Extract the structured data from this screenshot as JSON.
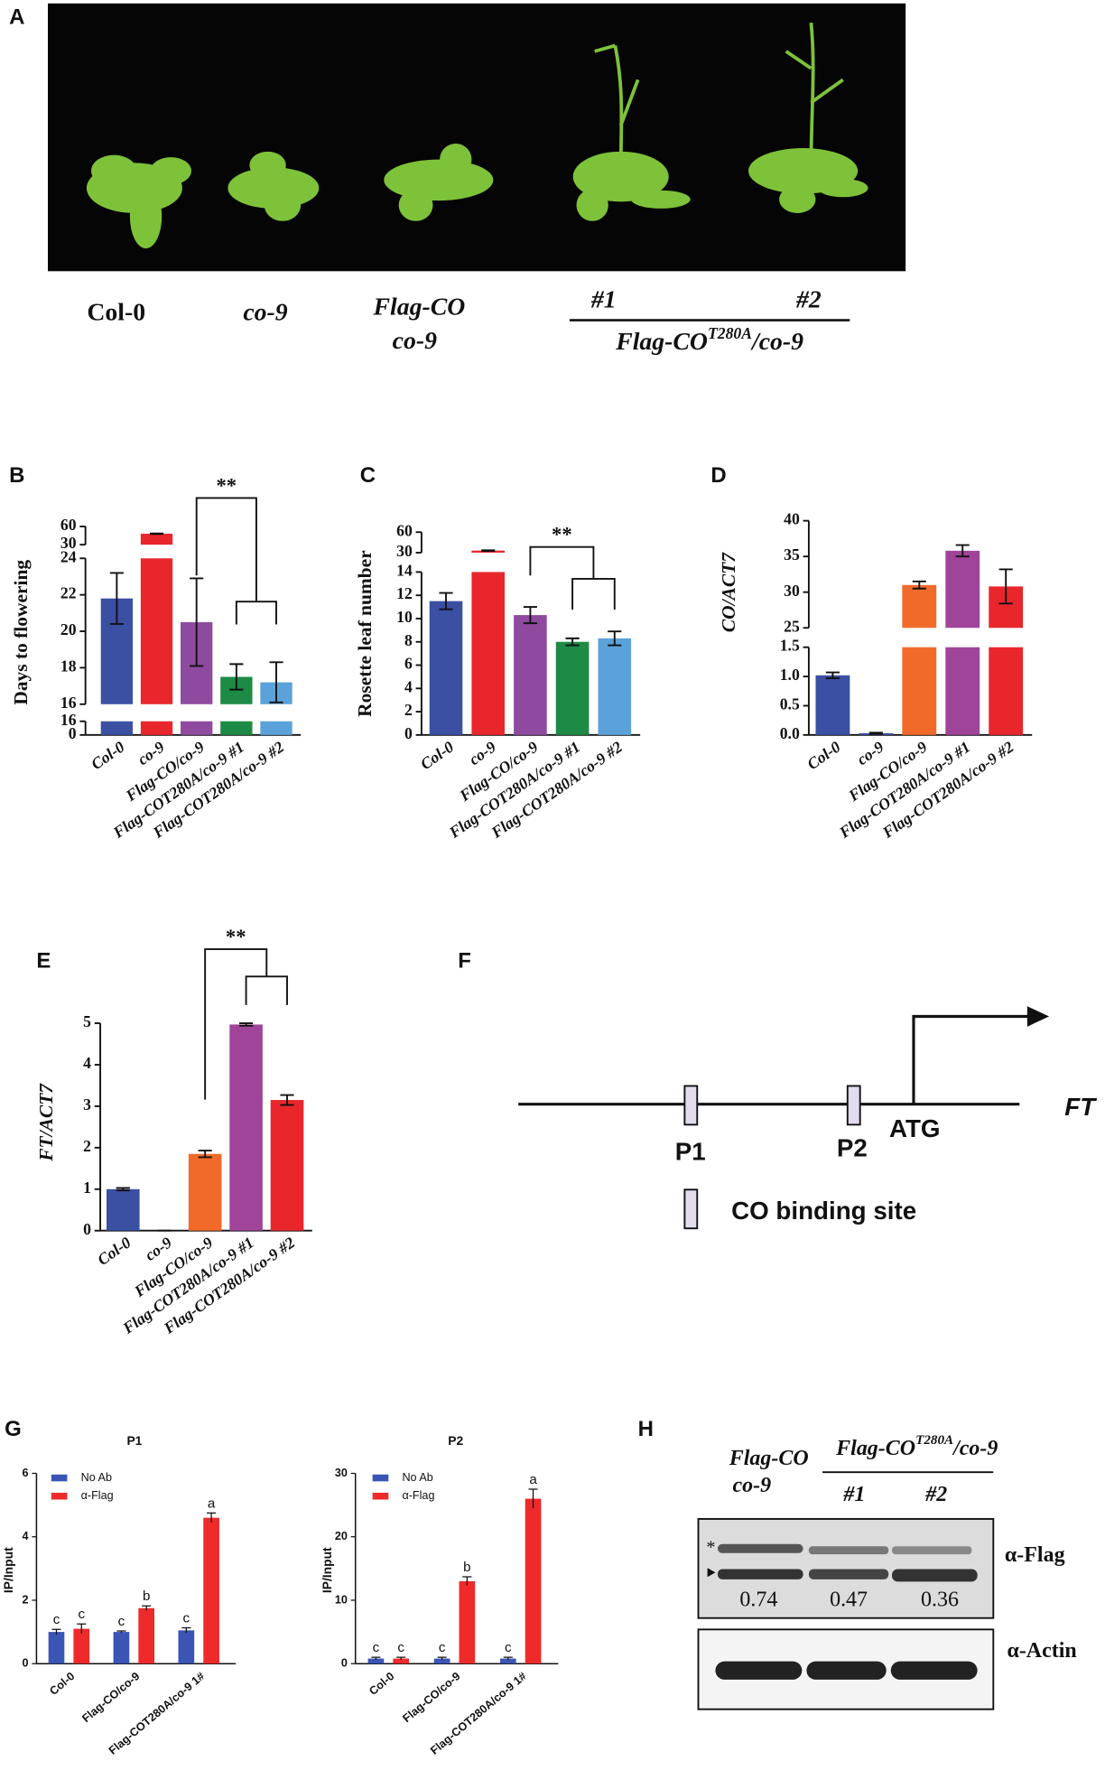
{
  "panel_labels": [
    "A",
    "B",
    "C",
    "D",
    "E",
    "F",
    "G",
    "H"
  ],
  "panel_a": {
    "labels": [
      "Col-0",
      "co-9",
      "Flag-CO",
      "co-9",
      "#1",
      "#2"
    ],
    "group": {
      "base": "Flag-CO",
      "sup": "T280A",
      "suffix": "/co-9"
    }
  },
  "panel_f": {
    "p1": "P1",
    "p2": "P2",
    "atg": "ATG",
    "gene": "FT",
    "legend": "CO binding site"
  },
  "panel_h": {
    "control": [
      "Flag-CO",
      "co-9"
    ],
    "group": {
      "base": "Flag-CO",
      "sup": "T280A",
      "suffix": "/co-9"
    },
    "lines": [
      "#1",
      "#2"
    ],
    "markers": [
      "*"
    ],
    "ratios": [
      "0.74",
      "0.47",
      "0.36"
    ],
    "antibodies": [
      "α-Flag",
      "α-Actin"
    ]
  },
  "chart_data": [
    {
      "type": "bar",
      "ylabel": "Days to flowering",
      "annotation": "**",
      "categories": [
        "Col-0",
        "co-9",
        "Flag-CO/co-9",
        "Flag-COT280A/co-9 #1",
        "Flag-COT280A/co-9 #2"
      ],
      "values": [
        21.8,
        48,
        20.5,
        17.5,
        17.2
      ],
      "errors": [
        1.4,
        0.5,
        2.4,
        0.7,
        1.1
      ],
      "colors": [
        "#3b4fa3",
        "#e8262c",
        "#8e4a9f",
        "#1d8a45",
        "#5aa2d9"
      ],
      "ylim_segments": [
        {
          "ylim": [
            0,
            16
          ],
          "yticks": [
            0,
            16
          ]
        },
        {
          "ylim": [
            16,
            24
          ],
          "yticks": [
            16,
            18,
            20,
            22,
            24
          ]
        },
        {
          "ylim": [
            30,
            60
          ],
          "yticks": [
            30,
            60
          ]
        }
      ]
    },
    {
      "type": "bar",
      "ylabel": "Rosette leaf number",
      "annotation": "**",
      "categories": [
        "Col-0",
        "co-9",
        "Flag-CO/co-9",
        "Flag-COT280A/co-9 #1",
        "Flag-COT280A/co-9 #2"
      ],
      "values": [
        11.5,
        33,
        10.3,
        8.0,
        8.3
      ],
      "errors": [
        0.7,
        0.5,
        0.7,
        0.3,
        0.6
      ],
      "colors": [
        "#3b4fa3",
        "#e8262c",
        "#8e4a9f",
        "#1d8a45",
        "#5aa2d9"
      ],
      "ylim_segments": [
        {
          "ylim": [
            0,
            14
          ],
          "yticks": [
            0,
            2,
            4,
            6,
            8,
            10,
            12,
            14
          ]
        },
        {
          "ylim": [
            30,
            60
          ],
          "yticks": [
            30,
            60
          ]
        }
      ]
    },
    {
      "type": "bar",
      "ylabel": "CO/ACT7",
      "categories": [
        "Col-0",
        "co-9",
        "Flag-CO/co-9",
        "Flag-COT280A/co-9 #1",
        "Flag-COT280A/co-9 #2"
      ],
      "values": [
        1.02,
        0.03,
        31,
        35.8,
        30.8
      ],
      "errors": [
        0.05,
        0.01,
        0.5,
        0.8,
        2.4
      ],
      "colors": [
        "#3b4fa3",
        "#3b4fa3",
        "#f26a2a",
        "#a0449a",
        "#e8262c"
      ],
      "ylim_segments": [
        {
          "ylim": [
            0,
            1.5
          ],
          "yticks": [
            {
              "value": 0,
              "label": "0.0"
            },
            {
              "value": 0.5,
              "label": "0.5"
            },
            {
              "value": 1,
              "label": "1.0"
            },
            {
              "value": 1.5,
              "label": "1.5"
            }
          ]
        },
        {
          "ylim": [
            25,
            40
          ],
          "yticks": [
            25,
            30,
            35,
            40
          ]
        }
      ]
    },
    {
      "type": "bar",
      "ylabel": "FT/ACT7",
      "annotation": "**",
      "categories": [
        "Col-0",
        "co-9",
        "Flag-CO/co-9",
        "Flag-COT280A/co-9 #1",
        "Flag-COT280A/co-9 #2"
      ],
      "values": [
        1.0,
        0,
        1.85,
        4.97,
        3.15
      ],
      "errors": [
        0.03,
        0,
        0.08,
        0.03,
        0.12
      ],
      "colors": [
        "#3b4fa3",
        "#3b4fa3",
        "#f26a2a",
        "#a0449a",
        "#e8262c"
      ],
      "ylim_segments": [
        {
          "ylim": [
            0,
            5
          ],
          "yticks": [
            0,
            1,
            2,
            3,
            4,
            5
          ]
        }
      ]
    },
    {
      "type": "grouped_bar",
      "title": "P1",
      "ylabel": "IP/Input",
      "categories": [
        "Col-0",
        "Flag-CO/co-9",
        "Flag-COT280A/co-9 1#"
      ],
      "ylim": [
        0,
        6
      ],
      "yticks": [
        0,
        2,
        4,
        6
      ],
      "series": [
        {
          "name": "No Ab",
          "color": "#3b55b5",
          "values": [
            1.0,
            1.0,
            1.05
          ],
          "errors": [
            0.08,
            0.03,
            0.08
          ],
          "letters": [
            "c",
            "c",
            "c"
          ]
        },
        {
          "name": "α-Flag",
          "color": "#ee2a2a",
          "values": [
            1.1,
            1.75,
            4.6
          ],
          "errors": [
            0.15,
            0.07,
            0.15
          ],
          "letters": [
            "c",
            "b",
            "a"
          ]
        }
      ]
    },
    {
      "type": "grouped_bar",
      "title": "P2",
      "ylabel": "IP/Input",
      "categories": [
        "Col-0",
        "Flag-CO/co-9",
        "Flag-COT280A/co-9 1#"
      ],
      "ylim": [
        0,
        30
      ],
      "yticks": [
        0,
        10,
        20,
        30
      ],
      "series": [
        {
          "name": "No Ab",
          "color": "#3b55b5",
          "values": [
            0.8,
            0.8,
            0.8
          ],
          "errors": [
            0.2,
            0.2,
            0.2
          ],
          "letters": [
            "c",
            "c",
            "c"
          ]
        },
        {
          "name": "α-Flag",
          "color": "#ee2a2a",
          "values": [
            0.8,
            13,
            26
          ],
          "errors": [
            0.2,
            0.7,
            1.5
          ],
          "letters": [
            "c",
            "b",
            "a"
          ]
        }
      ]
    }
  ]
}
